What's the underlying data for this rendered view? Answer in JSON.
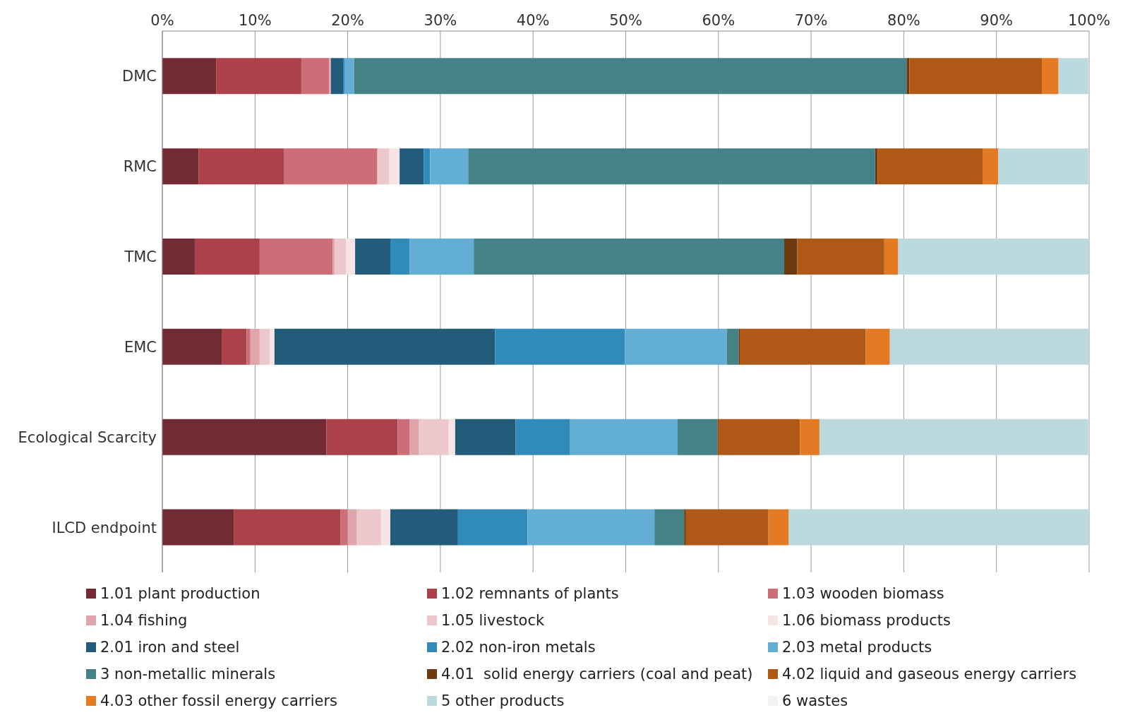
{
  "chart_data": {
    "type": "bar",
    "orientation": "horizontal",
    "stacked": true,
    "categories": [
      "DMC",
      "RMC",
      "TMC",
      "EMC",
      "Ecological Scarcity",
      "ILCD endpoint"
    ],
    "xlim": [
      0,
      100
    ],
    "xticks": [
      {
        "value": 0,
        "label": "0%"
      },
      {
        "value": 10,
        "label": "10%"
      },
      {
        "value": 20,
        "label": "20%"
      },
      {
        "value": 30,
        "label": "30%"
      },
      {
        "value": 40,
        "label": "40%"
      },
      {
        "value": 50,
        "label": "50%"
      },
      {
        "value": 60,
        "label": "60%"
      },
      {
        "value": 70,
        "label": "70%"
      },
      {
        "value": 80,
        "label": "80%"
      },
      {
        "value": 90,
        "label": "90%"
      },
      {
        "value": 100,
        "label": "100%"
      }
    ],
    "grid": "x",
    "legend": "bottom",
    "series": [
      {
        "name": "1.01 plant production",
        "color": "#722a33",
        "values": [
          5.8,
          3.9,
          3.5,
          6.4,
          17.7,
          7.7
        ]
      },
      {
        "name": "1.02 remnants of plants",
        "color": "#ac404b",
        "values": [
          9.2,
          9.2,
          7.0,
          2.7,
          7.7,
          11.5
        ]
      },
      {
        "name": "1.03 wooden biomass",
        "color": "#cb6e77",
        "values": [
          3.0,
          10.1,
          7.9,
          0.4,
          1.3,
          0.8
        ]
      },
      {
        "name": "1.04 fishing",
        "color": "#e0a5ab",
        "values": [
          0.2,
          null,
          0.2,
          1.0,
          1.0,
          1.0
        ]
      },
      {
        "name": "1.05 livestock",
        "color": "#ecc7cb",
        "values": [
          null,
          1.3,
          1.2,
          1.1,
          3.2,
          2.6
        ]
      },
      {
        "name": "1.06 biomass products",
        "color": "#f6e4e6",
        "values": [
          0,
          1.1,
          1.0,
          0.5,
          0.7,
          1.0
        ]
      },
      {
        "name": "2.01 iron and steel",
        "color": "#225c7a",
        "values": [
          1.3,
          2.6,
          3.8,
          23.8,
          6.5,
          7.3
        ]
      },
      {
        "name": "2.02 non-iron metals",
        "color": "#308bba",
        "values": [
          0.2,
          0.7,
          2.1,
          14.0,
          5.9,
          7.5
        ]
      },
      {
        "name": "2.03 metal products",
        "color": "#63aed5",
        "values": [
          1.0,
          4.1,
          6.9,
          11.0,
          11.6,
          13.7
        ]
      },
      {
        "name": "3 non-metallic minerals",
        "color": "#458288",
        "values": [
          59.6,
          43.9,
          33.5,
          1.3,
          4.3,
          3.2
        ]
      },
      {
        "name": "4.01  solid energy carriers (coal and peat)",
        "color": "#6e3a0f",
        "values": [
          0.3,
          0.3,
          1.4,
          0.1,
          0.1,
          0.2
        ]
      },
      {
        "name": "4.02 liquid and gaseous energy carriers",
        "color": "#b05815",
        "values": [
          14.3,
          11.3,
          9.4,
          13.6,
          8.8,
          8.9
        ]
      },
      {
        "name": "4.03 other fossil energy carriers",
        "color": "#e57a24",
        "values": [
          1.8,
          1.7,
          1.5,
          2.6,
          2.1,
          2.2
        ]
      },
      {
        "name": "5 other products",
        "color": "#bcdade",
        "values": [
          3.2,
          9.7,
          20.6,
          21.5,
          29.0,
          32.4
        ]
      },
      {
        "name": "6 wastes",
        "color": "#f2f2f2",
        "values": [
          0,
          0,
          0,
          0,
          null,
          0
        ]
      }
    ]
  }
}
